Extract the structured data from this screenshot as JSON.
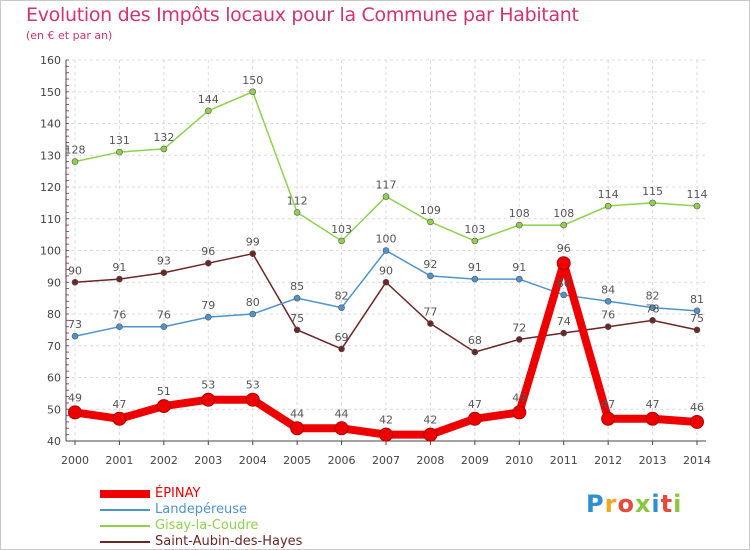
{
  "header": {
    "title": "Evolution des Impôts locaux pour la Commune par Habitant",
    "subtitle": "(en € et par an)"
  },
  "chart_data": {
    "type": "line",
    "title": "Evolution des Impôts locaux pour la Commune par Habitant",
    "subtitle": "(en € et par an)",
    "xlabel": "",
    "ylabel": "",
    "ylim": [
      40,
      160
    ],
    "yticks": [
      40,
      50,
      60,
      70,
      80,
      90,
      100,
      110,
      120,
      130,
      140,
      150,
      160
    ],
    "grid": true,
    "categories": [
      "2000",
      "2001",
      "2002",
      "2003",
      "2004",
      "2005",
      "2006",
      "2007",
      "2008",
      "2009",
      "2010",
      "2011",
      "2012",
      "2013",
      "2014"
    ],
    "series": [
      {
        "name": "ÉPINAY",
        "color": "#ee0000",
        "emphasis": true,
        "values": [
          49,
          47,
          51,
          53,
          53,
          44,
          44,
          42,
          42,
          47,
          49,
          96,
          47,
          47,
          46
        ],
        "labels": [
          "49",
          "47",
          "51",
          "53",
          "53",
          "44",
          "44",
          "42",
          "42",
          "47",
          "49",
          "96",
          "47",
          "47",
          "46"
        ]
      },
      {
        "name": "Landepéreuse",
        "color": "#4f93cc",
        "values": [
          73,
          76,
          76,
          79,
          80,
          85,
          82,
          100,
          92,
          91,
          91,
          86,
          84,
          82,
          81
        ],
        "labels": [
          "73",
          "76",
          "76",
          "79",
          "80",
          "85",
          "82",
          "100",
          "92",
          "91",
          "91",
          "86",
          "84",
          "82",
          "81"
        ]
      },
      {
        "name": "Gisay-la-Coudre",
        "color": "#8fd14f",
        "values": [
          128,
          131,
          132,
          144,
          150,
          112,
          103,
          117,
          109,
          103,
          108,
          108,
          114,
          115,
          114
        ],
        "labels": [
          "128",
          "131",
          "132",
          "144",
          "150",
          "112",
          "103",
          "117",
          "109",
          "103",
          "108",
          "108",
          "114",
          "115",
          "114"
        ]
      },
      {
        "name": "Saint-Aubin-des-Hayes",
        "color": "#6b2626",
        "values": [
          90,
          91,
          93,
          96,
          99,
          75,
          69,
          90,
          77,
          68,
          72,
          74,
          76,
          78,
          75
        ],
        "labels": [
          "90",
          "91",
          "93",
          "96",
          "99",
          "75",
          "69",
          "90",
          "77",
          "68",
          "72",
          "74",
          "76",
          "78",
          "75"
        ]
      }
    ],
    "legend_position": "bottom-left"
  },
  "legend": {
    "items": [
      {
        "label": "ÉPINAY",
        "color": "#ee0000"
      },
      {
        "label": "Landepéreuse",
        "color": "#4f93cc"
      },
      {
        "label": "Gisay-la-Coudre",
        "color": "#8fd14f"
      },
      {
        "label": "Saint-Aubin-des-Hayes",
        "color": "#6b2626"
      }
    ]
  },
  "brand": {
    "logo_text": "Proxiti",
    "logo_colors": [
      "#2e8fd1",
      "#f5a623",
      "#e8493b",
      "#8cc63f",
      "#2e8fd1",
      "#e8493b",
      "#8cc63f"
    ]
  }
}
